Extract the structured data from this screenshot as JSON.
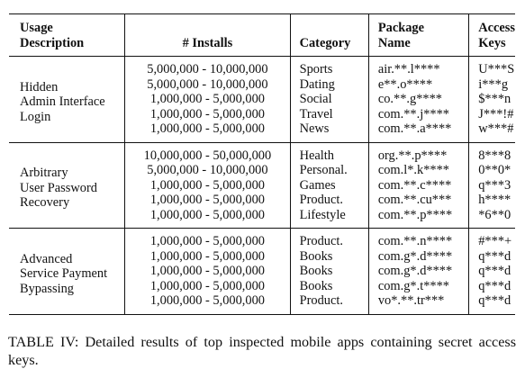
{
  "table": {
    "headers": {
      "usage_line1": "Usage",
      "usage_line2": "Description",
      "installs": "# Installs",
      "category": "Category",
      "package_line1": "Package",
      "package_line2": "Name",
      "keys_line1": "Access",
      "keys_line2": "Keys"
    },
    "groups": [
      {
        "usage_lines": [
          "Hidden",
          "Admin Interface",
          "Login"
        ],
        "rows": [
          {
            "installs": "5,000,000 - 10,000,000",
            "category": "Sports",
            "package": "air.**.l****",
            "key": "U***S"
          },
          {
            "installs": "5,000,000 - 10,000,000",
            "category": "Dating",
            "package": "e**.o****",
            "key": "i***g"
          },
          {
            "installs": "1,000,000 - 5,000,000",
            "category": "Social",
            "package": "co.**.g****",
            "key": "$***n"
          },
          {
            "installs": "1,000,000 - 5,000,000",
            "category": "Travel",
            "package": "com.**.j****",
            "key": "J***!#"
          },
          {
            "installs": "1,000,000 - 5,000,000",
            "category": "News",
            "package": "com.**.a****",
            "key": "w***#"
          }
        ]
      },
      {
        "usage_lines": [
          "Arbitrary",
          "User Password",
          "Recovery"
        ],
        "rows": [
          {
            "installs": "10,000,000 - 50,000,000",
            "category": "Health",
            "package": "org.**.p****",
            "key": "8***8"
          },
          {
            "installs": "5,000,000 - 10,000,000",
            "category": "Personal.",
            "package": "com.l*.k****",
            "key": "0**0*"
          },
          {
            "installs": "1,000,000 - 5,000,000",
            "category": "Games",
            "package": "com.**.c****",
            "key": "q***3"
          },
          {
            "installs": "1,000,000 - 5,000,000",
            "category": "Product.",
            "package": "com.**.cu***",
            "key": "h****"
          },
          {
            "installs": "1,000,000 - 5,000,000",
            "category": "Lifestyle",
            "package": "com.**.p****",
            "key": "*6**0"
          }
        ]
      },
      {
        "usage_lines": [
          "Advanced",
          "Service Payment",
          "Bypassing"
        ],
        "rows": [
          {
            "installs": "1,000,000 - 5,000,000",
            "category": "Product.",
            "package": "com.**.n****",
            "key": "#***+"
          },
          {
            "installs": "1,000,000 - 5,000,000",
            "category": "Books",
            "package": "com.g*.d****",
            "key": "q***d"
          },
          {
            "installs": "1,000,000 - 5,000,000",
            "category": "Books",
            "package": "com.g*.d****",
            "key": "q***d"
          },
          {
            "installs": "1,000,000 - 5,000,000",
            "category": "Books",
            "package": "com.g*.t****",
            "key": "q***d"
          },
          {
            "installs": "1,000,000 - 5,000,000",
            "category": "Product.",
            "package": "vo*.**.tr***",
            "key": "q***d"
          }
        ]
      }
    ]
  },
  "caption": "TABLE IV: Detailed results of top inspected mobile apps containing secret access keys."
}
